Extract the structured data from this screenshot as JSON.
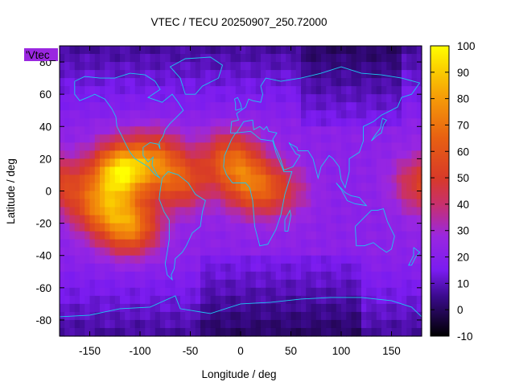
{
  "chart_data": {
    "type": "heatmap",
    "title": "VTEC / TECU 20250907_250.72000",
    "xlabel": "Longitude / deg",
    "ylabel": "Latitude / deg",
    "xlim": [
      -180,
      180
    ],
    "ylim": [
      -90,
      90
    ],
    "x_ticks": [
      -150,
      -100,
      -50,
      0,
      50,
      100,
      150
    ],
    "y_ticks": [
      -80,
      -60,
      -40,
      -20,
      0,
      20,
      40,
      60,
      80
    ],
    "colorbar": {
      "range": [
        -10,
        100
      ],
      "ticks": [
        -10,
        0,
        10,
        20,
        30,
        40,
        50,
        60,
        70,
        80,
        90,
        100
      ]
    },
    "colormap_stops": [
      {
        "value": -10,
        "color": "#000000"
      },
      {
        "value": 5,
        "color": "#3a0a8c"
      },
      {
        "value": 15,
        "color": "#7a1cf0"
      },
      {
        "value": 28,
        "color": "#9a27e0"
      },
      {
        "value": 40,
        "color": "#c8306c"
      },
      {
        "value": 50,
        "color": "#d83a28"
      },
      {
        "value": 65,
        "color": "#e86012"
      },
      {
        "value": 80,
        "color": "#f59a08"
      },
      {
        "value": 92,
        "color": "#fbd400"
      },
      {
        "value": 100,
        "color": "#ffff00"
      }
    ],
    "grid_resolution_deg": 5,
    "vtec_features": [
      {
        "lon": -120,
        "lat": 12,
        "peak": 90
      },
      {
        "lon": -140,
        "lat": -10,
        "peak": 62
      },
      {
        "lon": -110,
        "lat": -22,
        "peak": 72
      },
      {
        "lon": -85,
        "lat": 20,
        "peak": 58
      },
      {
        "lon": -60,
        "lat": 5,
        "peak": 55
      },
      {
        "lon": -10,
        "lat": 20,
        "peak": 60
      },
      {
        "lon": 10,
        "lat": 3,
        "peak": 58
      },
      {
        "lon": 40,
        "lat": 0,
        "peak": 42
      },
      {
        "lon": 180,
        "lat": 5,
        "peak": 50
      }
    ],
    "legend_key": "'Vtec_",
    "coastline_color": "#1cc8f0"
  }
}
